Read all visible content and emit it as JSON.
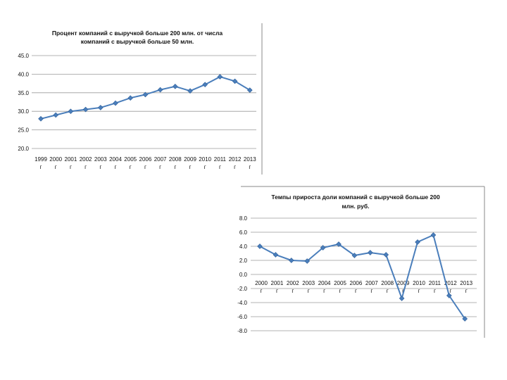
{
  "chart_data": [
    {
      "type": "line",
      "title_lines": [
        "Процент компаний с выручкой больше 200 млн. от числа",
        "компаний с выручкой больше 50 млн."
      ],
      "categories": [
        "1999",
        "2000",
        "2001",
        "2002",
        "2003",
        "2004",
        "2005",
        "2006",
        "2007",
        "2008",
        "2009",
        "2010",
        "2011",
        "2012",
        "2013"
      ],
      "category_suffix": "г",
      "y_ticks": [
        "45.0",
        "40.0",
        "35.0",
        "30.0",
        "25.0",
        "20.0"
      ],
      "ylim": [
        20,
        45
      ],
      "values": [
        28.0,
        29.0,
        30.0,
        30.5,
        31.0,
        32.2,
        33.6,
        34.5,
        35.8,
        36.7,
        35.5,
        37.2,
        39.3,
        38.1,
        35.7
      ],
      "grid": true,
      "color": "#4a7ebb"
    },
    {
      "type": "line",
      "title_lines": [
        "Темпы прироста доли компаний с выручкой больше 200",
        "млн. руб."
      ],
      "categories": [
        "2000",
        "2001",
        "2002",
        "2003",
        "2004",
        "2005",
        "2006",
        "2007",
        "2008",
        "2009",
        "2010",
        "2011",
        "2012",
        "2013"
      ],
      "category_suffix": "г",
      "y_ticks": [
        "8.0",
        "6.0",
        "4.0",
        "2.0",
        "0.0",
        "-2.0",
        "-4.0",
        "-6.0",
        "-8.0"
      ],
      "ylim": [
        -8,
        8
      ],
      "values": [
        4.0,
        2.8,
        2.0,
        1.9,
        3.8,
        4.3,
        2.7,
        3.1,
        2.8,
        -3.4,
        4.6,
        5.6,
        -3.0,
        -6.3
      ],
      "grid": true,
      "color": "#4a7ebb"
    }
  ]
}
